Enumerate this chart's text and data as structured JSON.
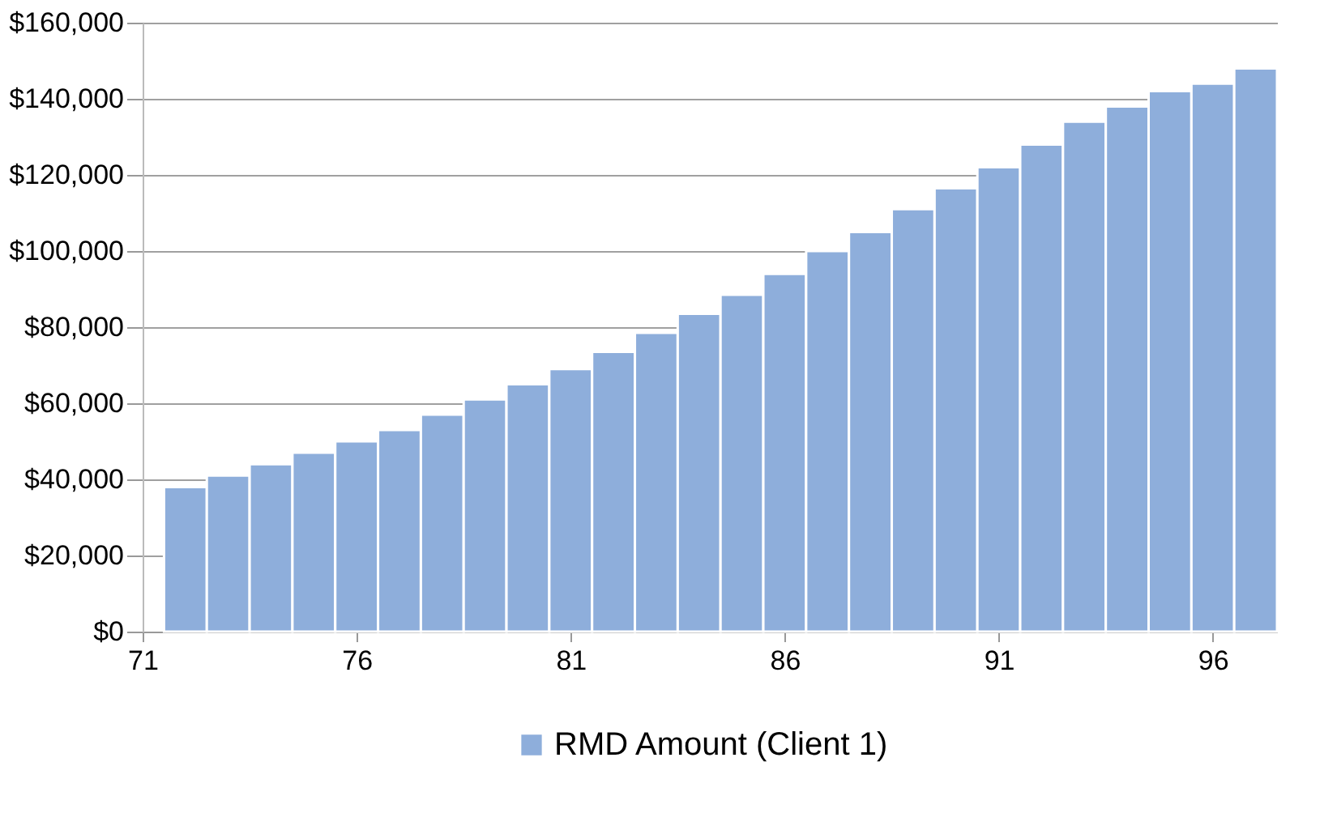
{
  "chart_data": {
    "type": "bar",
    "x": [
      72,
      73,
      74,
      75,
      76,
      77,
      78,
      79,
      80,
      81,
      82,
      83,
      84,
      85,
      86,
      87,
      88,
      89,
      90,
      91,
      92,
      93,
      94,
      95,
      96,
      97
    ],
    "series": [
      {
        "name": "RMD Amount (Client 1)",
        "color": "#8eaedb",
        "values": [
          38000,
          41000,
          44000,
          47000,
          50000,
          53000,
          57000,
          61000,
          65000,
          69000,
          73500,
          78500,
          83500,
          88500,
          94000,
          100000,
          105000,
          111000,
          116500,
          122000,
          128000,
          134000,
          138000,
          142000,
          144000,
          148000
        ]
      }
    ],
    "xlim": [
      71,
      97.5
    ],
    "xticks": [
      71,
      76,
      81,
      86,
      91,
      96
    ],
    "ylim": [
      0,
      160000
    ],
    "yticks": [
      {
        "value": 0,
        "label": "$0"
      },
      {
        "value": 20000,
        "label": "$20,000"
      },
      {
        "value": 40000,
        "label": "$40,000"
      },
      {
        "value": 60000,
        "label": "$60,000"
      },
      {
        "value": 80000,
        "label": "$80,000"
      },
      {
        "value": 100000,
        "label": "$100,000"
      },
      {
        "value": 120000,
        "label": "$120,000"
      },
      {
        "value": 140000,
        "label": "$140,000"
      },
      {
        "value": 160000,
        "label": "$160,000"
      }
    ],
    "grid": "y",
    "legend": "bottom"
  }
}
